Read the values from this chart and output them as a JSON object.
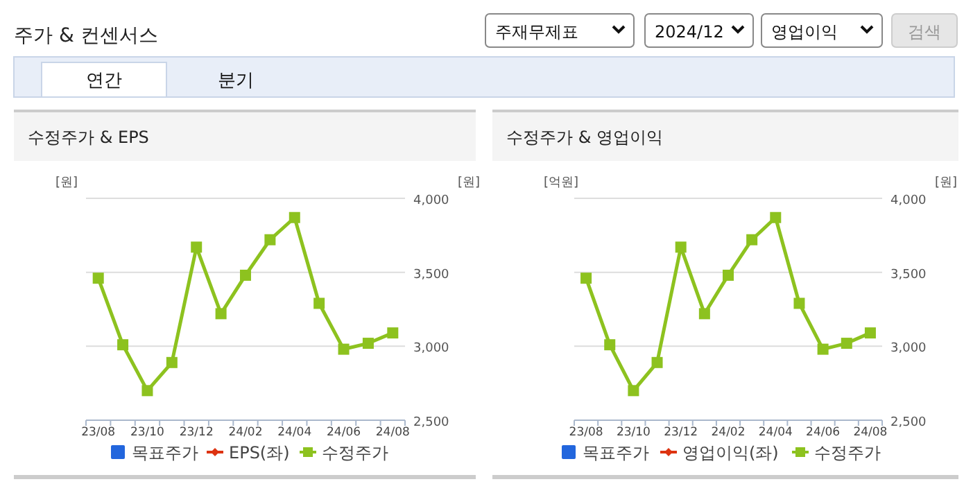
{
  "chart_data": [
    {
      "type": "other",
      "title": "주가 & 컨센서스",
      "annotations": [
        "주재무제표",
        "2024/12",
        "영업이익",
        "검색",
        "연간",
        "분기"
      ]
    },
    {
      "type": "line",
      "title": "수정주가 & EPS",
      "ylabel": "[원]",
      "y2label": "[원]",
      "categories": [
        "23/08",
        null,
        "23/10",
        null,
        "23/12",
        null,
        "24/02",
        null,
        "24/04",
        null,
        "24/06",
        null,
        "24/08"
      ],
      "series": [
        {
          "name": "목표주가",
          "type": "scatter",
          "color": "#2266dd",
          "values": [
            null,
            null,
            null,
            null,
            null,
            null,
            null,
            null,
            null,
            null,
            null,
            null,
            null
          ]
        },
        {
          "name": "EPS(좌)",
          "color": "#dd3311",
          "values": [
            null,
            null,
            null,
            null,
            null,
            null,
            null,
            null,
            null,
            null,
            null,
            null,
            null
          ]
        },
        {
          "name": "수정주가",
          "color": "#8dc21f",
          "axis": "y2",
          "values": [
            3460,
            3010,
            2700,
            2890,
            3670,
            3220,
            3480,
            3720,
            3870,
            3290,
            2980,
            3020,
            3090
          ]
        }
      ],
      "y2lim": [
        2500,
        4000
      ],
      "y2ticks": [
        {
          "value": 2500,
          "label": "2,500"
        },
        {
          "value": 3000,
          "label": "3,000"
        },
        {
          "value": 3500,
          "label": "3,500"
        },
        {
          "value": 4000,
          "label": "4,000"
        }
      ],
      "grid": true,
      "legend": "bottom",
      "marker": "square"
    },
    {
      "type": "line",
      "title": "수정주가 & 영업이익",
      "ylabel": "[억원]",
      "y2label": "[원]",
      "categories": [
        "23/08",
        null,
        "23/10",
        null,
        "23/12",
        null,
        "24/02",
        null,
        "24/04",
        null,
        "24/06",
        null,
        "24/08"
      ],
      "series": [
        {
          "name": "목표주가",
          "type": "scatter",
          "color": "#2266dd",
          "values": [
            null,
            null,
            null,
            null,
            null,
            null,
            null,
            null,
            null,
            null,
            null,
            null,
            null
          ]
        },
        {
          "name": "영업이익(좌)",
          "color": "#dd3311",
          "values": [
            null,
            null,
            null,
            null,
            null,
            null,
            null,
            null,
            null,
            null,
            null,
            null,
            null
          ]
        },
        {
          "name": "수정주가",
          "color": "#8dc21f",
          "axis": "y2",
          "values": [
            3460,
            3010,
            2700,
            2890,
            3670,
            3220,
            3480,
            3720,
            3870,
            3290,
            2980,
            3020,
            3090
          ]
        }
      ],
      "y2lim": [
        2500,
        4000
      ],
      "y2ticks": [
        {
          "value": 2500,
          "label": "2,500"
        },
        {
          "value": 3000,
          "label": "3,000"
        },
        {
          "value": 3500,
          "label": "3,500"
        },
        {
          "value": 4000,
          "label": "4,000"
        }
      ],
      "grid": true,
      "legend": "bottom",
      "marker": "square"
    }
  ]
}
